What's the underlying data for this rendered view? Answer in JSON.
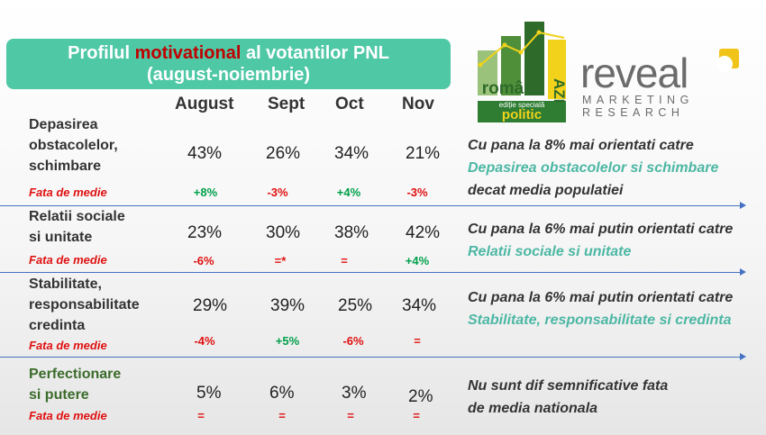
{
  "title": {
    "line1_pre": "Profilul ",
    "line1_highlight": "motivational",
    "line1_post": " al votantilor PNL",
    "line2": "(august-noiembrie)"
  },
  "columns": [
    "August",
    "Sept",
    "Oct",
    "Nov"
  ],
  "deviation_label": "Fata de medie",
  "rows": [
    {
      "label_lines": [
        "Depasirea",
        "obstacolelor,",
        "schimbare"
      ],
      "values": [
        "43%",
        "26%",
        "34%",
        "21%"
      ],
      "deviations": [
        "+8%",
        "-3%",
        "+4%",
        "-3%"
      ],
      "note_pre": "Cu pana la 8% mai orientati catre ",
      "note_accent": "Depasirea obstacolelor si schimbare",
      "note_post": " decat media populatiei"
    },
    {
      "label_lines": [
        "Relatii sociale",
        "si unitate"
      ],
      "values": [
        "23%",
        "30%",
        "38%",
        "42%"
      ],
      "deviations": [
        "-6%",
        "=*",
        "=",
        "+4%"
      ],
      "note_pre": "Cu pana la 6% mai putin orientati catre ",
      "note_accent": "Relatii sociale si unitate",
      "note_post": ""
    },
    {
      "label_lines": [
        "Stabilitate,",
        "responsabilitate",
        "credinta"
      ],
      "values": [
        "29%",
        "39%",
        "25%",
        "34%"
      ],
      "deviations": [
        "-4%",
        "+5%",
        "-6%",
        "="
      ],
      "note_pre": "Cu pana la 6% mai putin orientati catre ",
      "note_accent": "Stabilitate, responsabilitate si credinta",
      "note_post": ""
    },
    {
      "label_lines": [
        "Perfectionare",
        "si putere"
      ],
      "values": [
        "5%",
        "6%",
        "3%",
        "2%"
      ],
      "deviations": [
        "=",
        "=",
        "=",
        "="
      ],
      "note_pre": "Nu sunt dif semnificative fata de media nationala",
      "note_accent": "",
      "note_post": ""
    }
  ],
  "logos": {
    "romanii_word": "românii",
    "azi_word": "AZI",
    "edition_line": "ediție specială",
    "politic_word": "politic",
    "reveal_word": "reveal",
    "reveal_sub1": "MARKETING",
    "reveal_sub2": "RESEARCH"
  },
  "colors": {
    "title_bg": "#4fc8a6",
    "highlight_red": "#c00000",
    "positive": "#00a04a",
    "negative": "#e01010",
    "accent_teal": "#4cb7a4",
    "separator": "#4472c4",
    "logo_green": "#2e7d32",
    "logo_yellow": "#f2d21b",
    "reveal_yellow": "#f0c419"
  }
}
